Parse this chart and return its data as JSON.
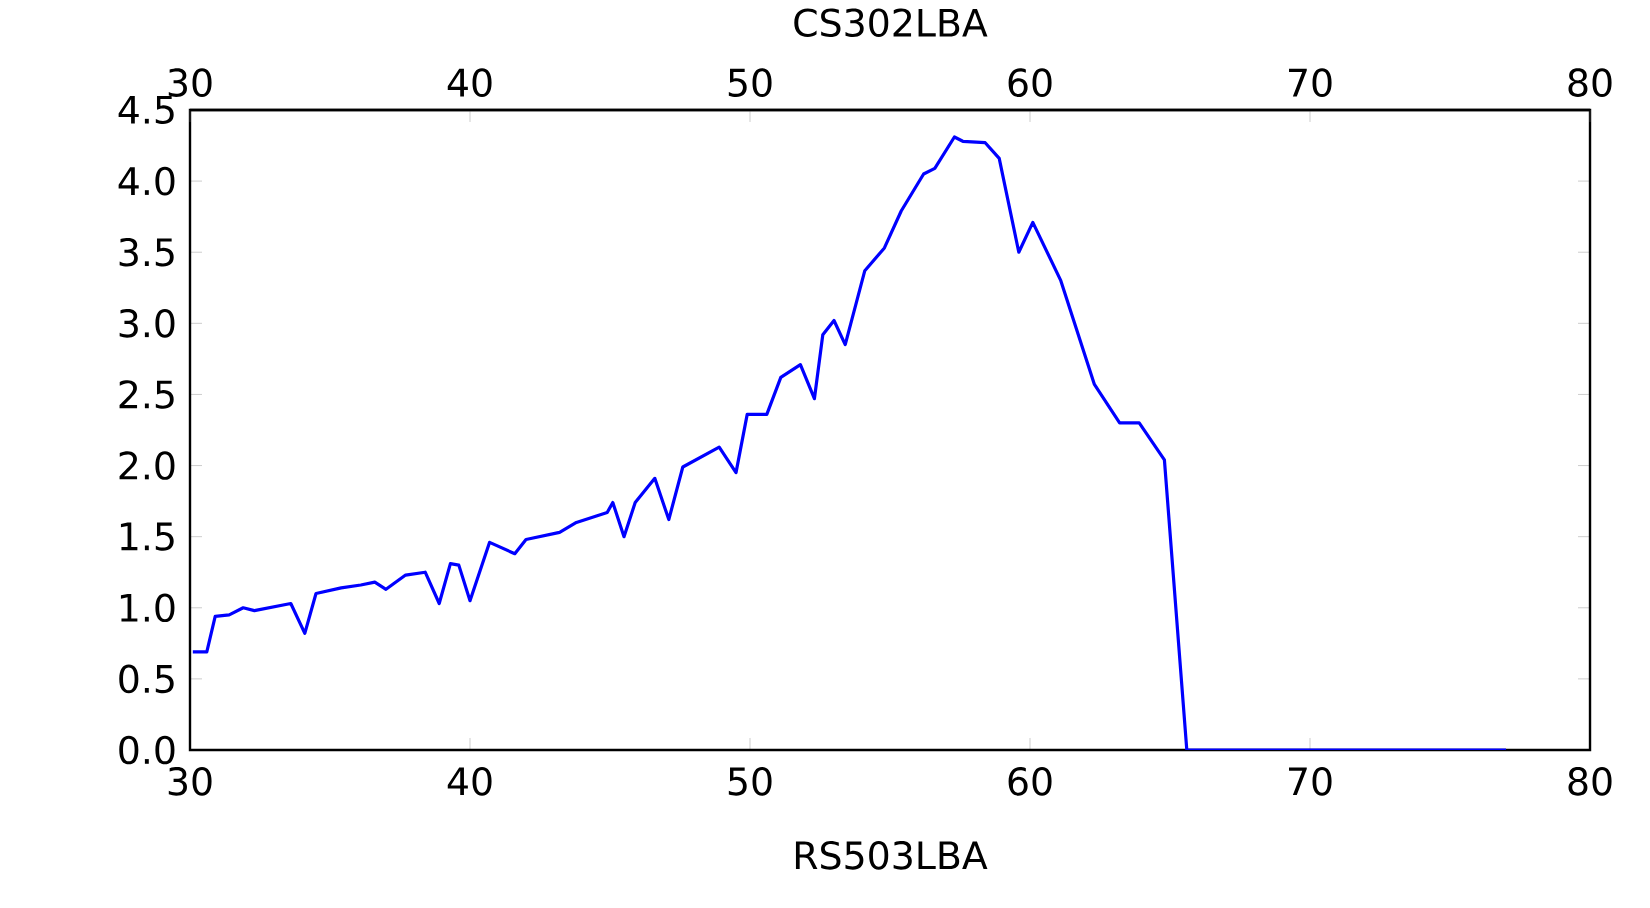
{
  "chart_data": {
    "type": "line",
    "title": "CS302LBA",
    "x": [
      30.1,
      30.6,
      30.9,
      31.4,
      31.9,
      32.3,
      33.6,
      34.1,
      34.5,
      35.4,
      36.1,
      36.6,
      37.0,
      37.7,
      38.4,
      38.9,
      39.3,
      39.6,
      40.0,
      40.7,
      41.6,
      42.0,
      43.2,
      43.8,
      44.9,
      45.1,
      45.5,
      45.9,
      46.6,
      47.1,
      47.6,
      48.9,
      49.5,
      49.9,
      50.6,
      51.1,
      51.8,
      52.3,
      52.6,
      53.0,
      53.4,
      54.1,
      54.8,
      55.4,
      56.2,
      56.6,
      57.3,
      57.6,
      58.4,
      58.9,
      59.6,
      60.1,
      61.1,
      62.3,
      63.2,
      63.9,
      64.8,
      65.6,
      77.0
    ],
    "series": [
      {
        "color": "#0000ff",
        "values": [
          0.69,
          0.69,
          0.94,
          0.95,
          1.0,
          0.98,
          1.03,
          0.82,
          1.1,
          1.14,
          1.16,
          1.18,
          1.13,
          1.23,
          1.25,
          1.03,
          1.31,
          1.3,
          1.05,
          1.46,
          1.38,
          1.48,
          1.53,
          1.6,
          1.67,
          1.74,
          1.5,
          1.74,
          1.91,
          1.62,
          1.99,
          2.13,
          1.95,
          2.36,
          2.36,
          2.62,
          2.71,
          2.47,
          2.92,
          3.02,
          2.85,
          3.37,
          3.53,
          3.79,
          4.05,
          4.09,
          4.31,
          4.28,
          4.27,
          4.16,
          3.5,
          3.71,
          3.3,
          2.57,
          2.3,
          2.3,
          2.04,
          0,
          0
        ]
      }
    ],
    "xlim": [
      30,
      80
    ],
    "xticks": [
      30,
      40,
      50,
      60,
      70,
      80
    ],
    "x2lim": [
      30,
      80
    ],
    "x2ticks": [
      30,
      40,
      50,
      60,
      70,
      80
    ],
    "ylim": [
      0,
      4.5
    ],
    "yticks": [
      {
        "value": 0,
        "label": "0.0"
      },
      {
        "value": 0.5,
        "label": "0.5"
      },
      {
        "value": 1,
        "label": "1.0"
      },
      {
        "value": 1.5,
        "label": "1.5"
      },
      {
        "value": 2,
        "label": "2.0"
      },
      {
        "value": 2.5,
        "label": "2.5"
      },
      {
        "value": 3,
        "label": "3.0"
      },
      {
        "value": 3.5,
        "label": "3.5"
      },
      {
        "value": 4,
        "label": "4.0"
      },
      {
        "value": 4.5,
        "label": "4.5"
      }
    ],
    "grid": false,
    "line_style": "solid",
    "marker": "none",
    "annotations": [
      "RS503LBA"
    ]
  }
}
